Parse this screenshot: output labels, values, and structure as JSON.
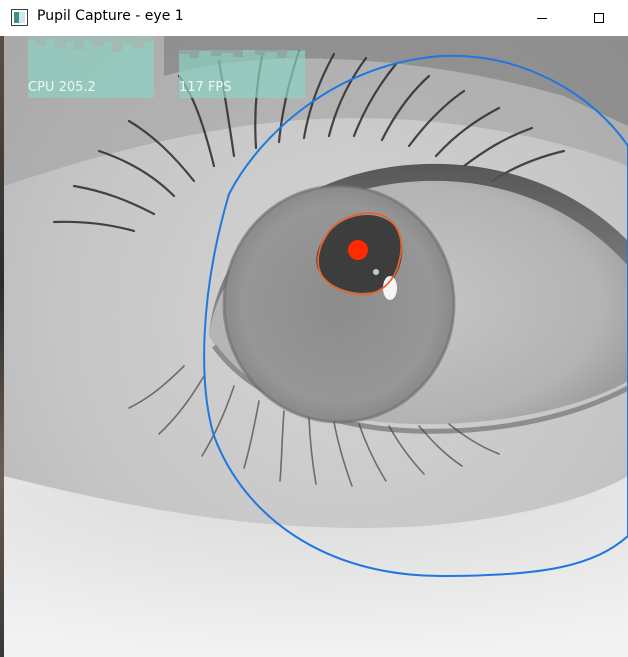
{
  "window": {
    "title": "Pupil Capture - eye 1",
    "app_icon": "pupil-capture-app-icon",
    "controls": {
      "minimize_icon": "minimize-icon",
      "maximize_icon": "maximize-icon"
    }
  },
  "overlay": {
    "cpu_label": "CPU 205.2",
    "fps_label": "117 FPS",
    "graph_color": "#8fd3c4"
  },
  "detection": {
    "eye_model_circle_color": "#1f78e0",
    "pupil_outline_color": "#e8632a",
    "pupil_center_color": "#ff2a00"
  }
}
